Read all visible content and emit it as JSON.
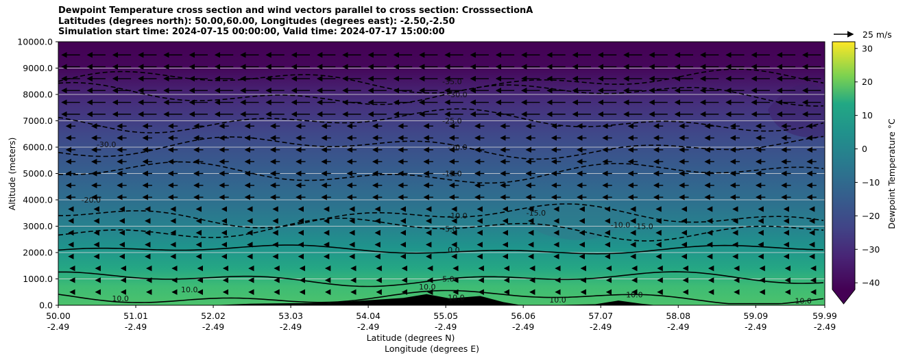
{
  "chart_data": {
    "type": "heatmap",
    "title_lines": [
      "Dewpoint Temperature cross section and wind vectors parallel to cross section: CrosssectionA",
      "Latitudes (degrees north): 50.00,60.00, Longitudes (degrees east): -2.50,-2.50",
      "Simulation start time: 2024-07-15 00:00:00, Valid time: 2024-07-17 15:00:00"
    ],
    "ylabel": "Altitude (meters)",
    "xlabel_lines": [
      "Latitude (degrees N)",
      "Longitude (degrees E)"
    ],
    "ylim": [
      0,
      10000
    ],
    "xlim": [
      50.0,
      59.99
    ],
    "y_ticks": [
      0,
      1000,
      2000,
      3000,
      4000,
      5000,
      6000,
      7000,
      8000,
      9000,
      10000
    ],
    "y_tick_labels": [
      "0.0",
      "1000.0",
      "2000.0",
      "3000.0",
      "4000.0",
      "5000.0",
      "6000.0",
      "7000.0",
      "8000.0",
      "9000.0",
      "10000.0"
    ],
    "x_ticks": [
      50.0,
      51.01,
      52.02,
      53.03,
      54.04,
      55.05,
      56.06,
      57.07,
      58.08,
      59.09,
      59.99
    ],
    "x_tick_lat_labels": [
      "50.00",
      "51.01",
      "52.02",
      "53.03",
      "54.04",
      "55.05",
      "56.06",
      "57.07",
      "58.08",
      "59.09",
      "59.99"
    ],
    "x_tick_lon_labels": [
      "-2.49",
      "-2.49",
      "-2.49",
      "-2.49",
      "-2.49",
      "-2.49",
      "-2.49",
      "-2.49",
      "-2.49",
      "-2.49",
      "-2.49"
    ],
    "grid_y": true,
    "colorbar": {
      "label": "Dewpoint Temperature °C",
      "range": [
        -42,
        32
      ],
      "ticks": [
        -40,
        -30,
        -20,
        -10,
        0,
        10,
        20,
        30
      ],
      "tick_labels": [
        "−40",
        "−30",
        "−20",
        "−10",
        "0",
        "10",
        "20",
        "30"
      ],
      "extend": "min"
    },
    "contour_levels": [
      {
        "value": -35,
        "label": "-35.0",
        "altitude": 8500
      },
      {
        "value": -30,
        "label": "-30.0",
        "altitude": 8000
      },
      {
        "value": -25,
        "label": "-25.0",
        "altitude": 7000
      },
      {
        "value": -20,
        "label": "-20.0",
        "altitude": 6000
      },
      {
        "value": -15,
        "label": "-15.0",
        "altitude": 5000
      },
      {
        "value": -10,
        "label": "-10.0",
        "altitude": 3400
      },
      {
        "value": -5,
        "label": "-5.0",
        "altitude": 2900
      },
      {
        "value": 0,
        "label": "0.0",
        "altitude": 2100
      },
      {
        "value": 5,
        "label": "5.0",
        "altitude": 1000
      },
      {
        "value": 10,
        "label": "10.0",
        "altitude": 300
      }
    ],
    "extra_contour_labels": [
      "-30.0",
      "-20.0",
      "10.0",
      "10.0",
      "-15.0",
      "-10.0",
      "-15.0",
      "10.0",
      "10.0",
      "10.0",
      "10.0"
    ],
    "wind_reference": {
      "speed_label": "25 m/s"
    },
    "wind_vector_direction": "toward lower latitude"
  }
}
